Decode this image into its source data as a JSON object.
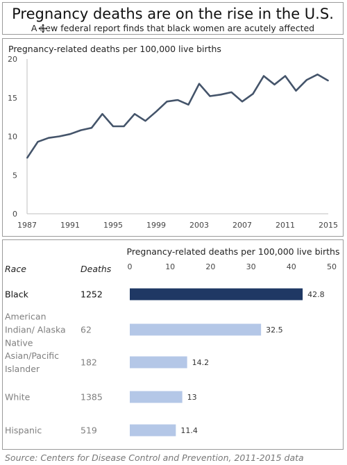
{
  "header": {
    "title": "Pregnancy deaths are on the rise in the U.S.",
    "subtitle": "A new federal report finds that black women are acutely affected"
  },
  "source": "Source: Centers for Disease Control and Prevention, 2011-2015 data",
  "chart_data": [
    {
      "type": "line",
      "title": "Pregnancy-related deaths per 100,000 live births",
      "xlabel": "",
      "ylabel": "",
      "xlim": [
        1987,
        2015
      ],
      "ylim": [
        0,
        20
      ],
      "x_ticks": [
        1987,
        1991,
        1995,
        1999,
        2003,
        2007,
        2011,
        2015
      ],
      "y_ticks": [
        0,
        5,
        10,
        15,
        20
      ],
      "x": [
        1987,
        1988,
        1989,
        1990,
        1991,
        1992,
        1993,
        1994,
        1995,
        1996,
        1997,
        1998,
        1999,
        2000,
        2001,
        2002,
        2003,
        2004,
        2005,
        2006,
        2007,
        2008,
        2009,
        2010,
        2011,
        2012,
        2013,
        2014,
        2015
      ],
      "series": [
        {
          "values": [
            7.2,
            9.3,
            9.8,
            10.0,
            10.3,
            10.8,
            11.1,
            12.9,
            11.3,
            11.3,
            12.9,
            12.0,
            13.2,
            14.5,
            14.7,
            14.1,
            16.8,
            15.2,
            15.4,
            15.7,
            14.5,
            15.5,
            17.8,
            16.7,
            17.8,
            15.9,
            17.3,
            18.0,
            17.2
          ]
        }
      ],
      "color": "#44546a",
      "grid": false
    },
    {
      "type": "bar",
      "orientation": "horizontal",
      "title": "Pregnancy-related deaths per 100,000 live births",
      "row_header_label": "Race",
      "deaths_header_label": "Deaths",
      "xlim": [
        0,
        50
      ],
      "x_ticks": [
        0,
        10,
        20,
        30,
        40,
        50
      ],
      "rows": [
        {
          "label_lines": [
            "Black"
          ],
          "deaths": "1252",
          "value": 42.8,
          "value_label": "42.8",
          "highlight": true
        },
        {
          "label_lines": [
            "American",
            "Indian/ Alaska",
            "Native"
          ],
          "deaths": "62",
          "value": 32.5,
          "value_label": "32.5",
          "highlight": false
        },
        {
          "label_lines": [
            "Asian/Pacific",
            "Islander"
          ],
          "deaths": "182",
          "value": 14.2,
          "value_label": "14.2",
          "highlight": false
        },
        {
          "label_lines": [
            "White"
          ],
          "deaths": "1385",
          "value": 13,
          "value_label": "13",
          "highlight": false
        },
        {
          "label_lines": [
            "Hispanic"
          ],
          "deaths": "519",
          "value": 11.4,
          "value_label": "11.4",
          "highlight": false
        }
      ],
      "colors": {
        "highlight": "#1f3864",
        "default": "#b4c7e7",
        "highlight_text": "#111111",
        "default_text": "#7f7f7f"
      }
    }
  ]
}
